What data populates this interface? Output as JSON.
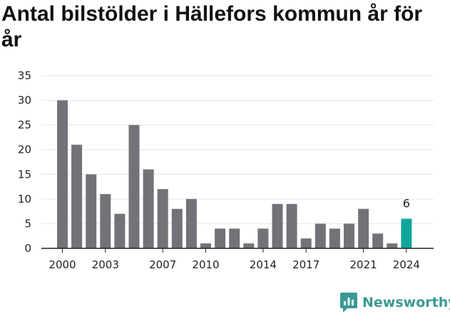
{
  "title": "Antal bilstölder i Hällefors kommun år för år",
  "brand": "Newsworthy",
  "colors": {
    "bar": "#737278",
    "highlight": "#10a59b",
    "grid": "#e4e4e4",
    "axis": "#222222"
  },
  "chart_data": {
    "type": "bar",
    "title": "Antal bilstölder i Hällefors kommun år för år",
    "categories": [
      "2000",
      "2001",
      "2002",
      "2003",
      "2004",
      "2005",
      "2006",
      "2007",
      "2008",
      "2009",
      "2010",
      "2011",
      "2012",
      "2013",
      "2014",
      "2015",
      "2016",
      "2017",
      "2018",
      "2019",
      "2020",
      "2021",
      "2022",
      "2023",
      "2024"
    ],
    "values": [
      30,
      21,
      15,
      11,
      7,
      25,
      16,
      12,
      8,
      10,
      1,
      4,
      4,
      1,
      4,
      9,
      9,
      2,
      5,
      4,
      5,
      8,
      3,
      1,
      6
    ],
    "highlight_index": 24,
    "annotations": [
      {
        "category": "2024",
        "label": "6"
      }
    ],
    "xtick_labels": [
      "2000",
      "2003",
      "2007",
      "2010",
      "2014",
      "2017",
      "2021",
      "2024"
    ],
    "yticks": [
      "0",
      "5",
      "10",
      "15",
      "20",
      "25",
      "30",
      "35"
    ],
    "ylim": [
      0,
      35
    ],
    "grid": true,
    "xlabel": "",
    "ylabel": ""
  }
}
